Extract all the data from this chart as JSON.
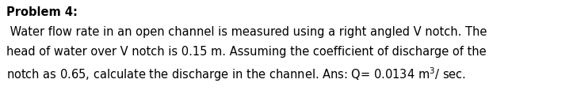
{
  "title": "Problem 4:",
  "line1": " Water flow rate in an open channel is measured using a right angled V notch. The",
  "line2": "head of water over V notch is 0.15 m. Assuming the coefficient of discharge of the",
  "line3_base": "notch as 0.65, calculate the discharge in the channel. Ans: Q= 0.0134 m",
  "line3_super": "3",
  "line3_end": "/ sec.",
  "background_color": "#ffffff",
  "text_color": "#000000",
  "title_fontsize": 10.5,
  "body_fontsize": 10.5,
  "font_family": "DejaVu Sans"
}
